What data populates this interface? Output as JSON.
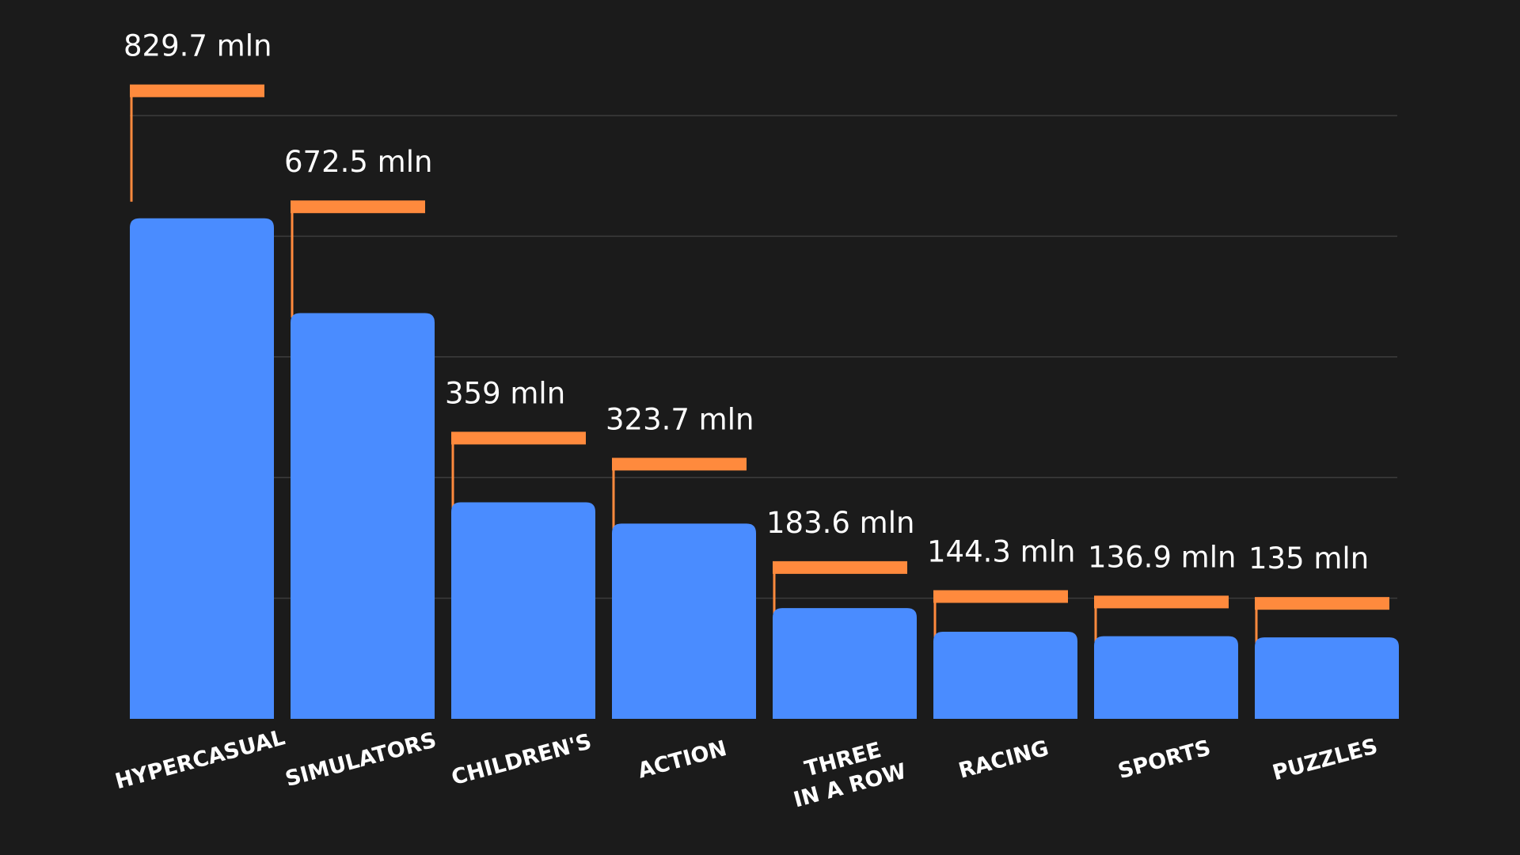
{
  "chart_data": {
    "type": "bar",
    "title": "",
    "xlabel": "",
    "ylabel": "",
    "categories": [
      "HYPERCASUAL",
      "SIMULATORS",
      "CHILDREN'S",
      "ACTION",
      "THREE IN A ROW",
      "RACING",
      "SPORTS",
      "PUZZLES"
    ],
    "category_lines": [
      [
        "HYPERCASUAL"
      ],
      [
        "SIMULATORS"
      ],
      [
        "CHILDREN'S"
      ],
      [
        "ACTION"
      ],
      [
        "THREE",
        "IN A ROW"
      ],
      [
        "RACING"
      ],
      [
        "SPORTS"
      ],
      [
        "PUZZLES"
      ]
    ],
    "values": [
      829.7,
      672.5,
      359,
      323.7,
      183.6,
      144.3,
      136.9,
      135
    ],
    "value_labels": [
      "829.7 mln",
      "672.5 mln",
      "359 mln",
      "323.7 mln",
      "183.6 mln",
      "144.3 mln",
      "136.9 mln",
      "135 mln"
    ],
    "unit": "mln",
    "ylim": [
      0,
      1000
    ],
    "grid": true,
    "legend": "none",
    "colors": {
      "background": "#1b1b1b",
      "bar": "#4a8cff",
      "bracket": "#ff8a3d",
      "grid": "#3c3c3c",
      "text": "#ffffff"
    }
  }
}
